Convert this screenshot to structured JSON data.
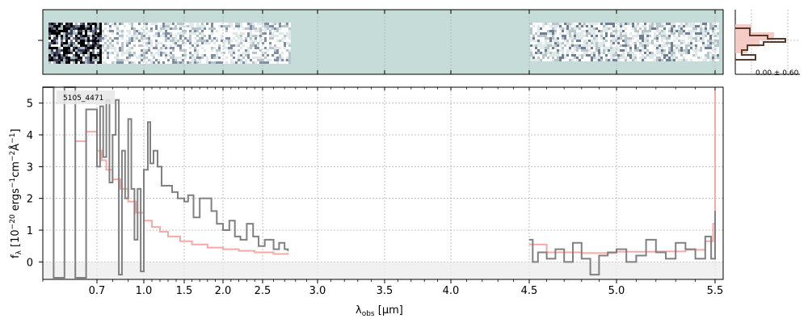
{
  "chart_data": {
    "type": "line",
    "object_id": "5105_4471",
    "xlabel": "λ_obs [μm]",
    "ylabel": "f_λ [10^-20 ergs^-1 cm^-2 Å^-1]",
    "xlim_um": [
      0.6,
      5.52
    ],
    "ylim": [
      -0.55,
      5.5
    ],
    "xticks": [
      {
        "v": 0.7,
        "label": "0.7"
      },
      {
        "v": 1.0,
        "label": "1.0"
      },
      {
        "v": 1.5,
        "label": "1.5"
      },
      {
        "v": 2.0,
        "label": "2.0"
      },
      {
        "v": 2.5,
        "label": "2.5"
      },
      {
        "v": 3.0,
        "label": "3.0"
      },
      {
        "v": 3.5,
        "label": "3.5"
      },
      {
        "v": 4.0,
        "label": "4.0"
      },
      {
        "v": 4.5,
        "label": "4.5"
      },
      {
        "v": 5.0,
        "label": "5.0"
      },
      {
        "v": 5.5,
        "label": "5.5"
      }
    ],
    "yticks": [
      {
        "v": 0,
        "label": "0"
      },
      {
        "v": 1,
        "label": "1"
      },
      {
        "v": 2,
        "label": "2"
      },
      {
        "v": 3,
        "label": "3"
      },
      {
        "v": 4,
        "label": "4"
      },
      {
        "v": 5,
        "label": "5"
      }
    ],
    "series": [
      {
        "role": "flux",
        "color": "#808080",
        "segments": [
          [
            [
              0.6,
              5.5
            ],
            [
              0.62,
              -0.5
            ],
            [
              0.64,
              5.5
            ],
            [
              0.66,
              -0.5
            ],
            [
              0.68,
              4.8
            ],
            [
              0.7,
              3.0
            ],
            [
              0.72,
              4.9
            ],
            [
              0.74,
              3.3
            ],
            [
              0.76,
              5.1
            ],
            [
              0.78,
              2.5
            ],
            [
              0.8,
              4.0
            ],
            [
              0.82,
              5.1
            ],
            [
              0.84,
              -0.4
            ],
            [
              0.86,
              3.5
            ],
            [
              0.88,
              2.0
            ],
            [
              0.9,
              4.5
            ],
            [
              0.92,
              2.3
            ],
            [
              0.94,
              0.7
            ],
            [
              0.96,
              2.3
            ],
            [
              0.98,
              -0.3
            ],
            [
              1.0,
              2.9
            ],
            [
              1.05,
              4.4
            ],
            [
              1.08,
              3.1
            ],
            [
              1.12,
              3.5
            ],
            [
              1.17,
              3.0
            ],
            [
              1.22,
              2.4
            ],
            [
              1.28,
              2.4
            ],
            [
              1.35,
              2.2
            ],
            [
              1.42,
              2.0
            ],
            [
              1.5,
              1.9
            ],
            [
              1.55,
              2.1
            ],
            [
              1.62,
              1.4
            ],
            [
              1.7,
              2.0
            ],
            [
              1.78,
              2.0
            ],
            [
              1.85,
              1.6
            ],
            [
              1.92,
              1.2
            ],
            [
              2.0,
              1.0
            ],
            [
              2.08,
              1.3
            ],
            [
              2.15,
              0.8
            ],
            [
              2.22,
              0.7
            ],
            [
              2.3,
              1.2
            ],
            [
              2.38,
              0.8
            ],
            [
              2.45,
              0.5
            ],
            [
              2.52,
              0.7
            ],
            [
              2.6,
              0.4
            ],
            [
              2.65,
              0.6
            ],
            [
              2.7,
              0.4
            ],
            [
              2.73,
              0.35
            ]
          ],
          [
            [
              4.5,
              0.7
            ],
            [
              4.52,
              0.0
            ],
            [
              4.55,
              0.3
            ],
            [
              4.6,
              0.1
            ],
            [
              4.65,
              0.4
            ],
            [
              4.7,
              0.0
            ],
            [
              4.75,
              0.6
            ],
            [
              4.8,
              0.1
            ],
            [
              4.85,
              -0.4
            ],
            [
              4.9,
              0.2
            ],
            [
              4.95,
              0.3
            ],
            [
              5.0,
              0.4
            ],
            [
              5.05,
              0.0
            ],
            [
              5.1,
              0.2
            ],
            [
              5.15,
              0.7
            ],
            [
              5.2,
              0.3
            ],
            [
              5.25,
              0.1
            ],
            [
              5.3,
              0.6
            ],
            [
              5.35,
              0.4
            ],
            [
              5.4,
              0.1
            ],
            [
              5.45,
              0.8
            ],
            [
              5.48,
              0.1
            ],
            [
              5.5,
              1.6
            ]
          ]
        ]
      },
      {
        "role": "error",
        "color": "#f7a9a5",
        "segments": [
          [
            [
              0.66,
              3.8
            ],
            [
              0.68,
              4.1
            ],
            [
              0.7,
              3.5
            ],
            [
              0.73,
              3.2
            ],
            [
              0.76,
              2.9
            ],
            [
              0.8,
              2.6
            ],
            [
              0.85,
              2.3
            ],
            [
              0.9,
              1.9
            ],
            [
              0.95,
              1.55
            ],
            [
              1.0,
              1.3
            ],
            [
              1.1,
              1.1
            ],
            [
              1.2,
              0.95
            ],
            [
              1.3,
              0.8
            ],
            [
              1.45,
              0.65
            ],
            [
              1.6,
              0.55
            ],
            [
              1.8,
              0.45
            ],
            [
              2.0,
              0.4
            ],
            [
              2.2,
              0.35
            ],
            [
              2.4,
              0.3
            ],
            [
              2.6,
              0.25
            ],
            [
              2.73,
              0.28
            ]
          ],
          [
            [
              4.5,
              0.55
            ],
            [
              4.6,
              0.3
            ],
            [
              4.8,
              0.28
            ],
            [
              5.0,
              0.32
            ],
            [
              5.2,
              0.33
            ],
            [
              5.35,
              0.38
            ],
            [
              5.45,
              0.65
            ],
            [
              5.49,
              1.2
            ],
            [
              5.5,
              5.4
            ]
          ]
        ]
      }
    ],
    "histogram": {
      "annotation": "0.00 ± 0.60"
    }
  }
}
